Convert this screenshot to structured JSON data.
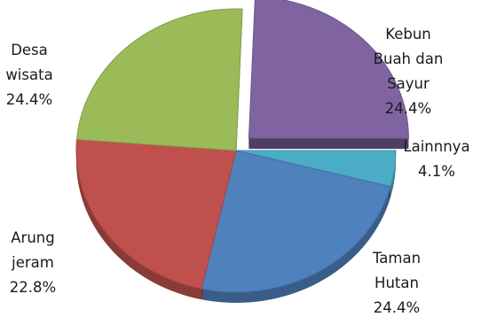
{
  "chart_data": {
    "type": "pie",
    "title": "",
    "slices": [
      {
        "label": [
          "Lainnnya",
          "4.1%"
        ],
        "value": 4.1,
        "color": "#4bacc6"
      },
      {
        "label": [
          "Taman",
          "Hutan",
          "24.4%"
        ],
        "value": 24.4,
        "color": "#4f81bd"
      },
      {
        "label": [
          "Arung",
          "jeram",
          "22.8%"
        ],
        "value": 22.8,
        "color": "#c0504d"
      },
      {
        "label": [
          "Desa",
          "wisata",
          "24.4%"
        ],
        "value": 24.4,
        "color": "#9bbb59"
      },
      {
        "label": [
          "Kebun",
          "Buah dan",
          "Sayur",
          "24.4%"
        ],
        "value": 24.4,
        "color": "#8064a2"
      }
    ]
  }
}
